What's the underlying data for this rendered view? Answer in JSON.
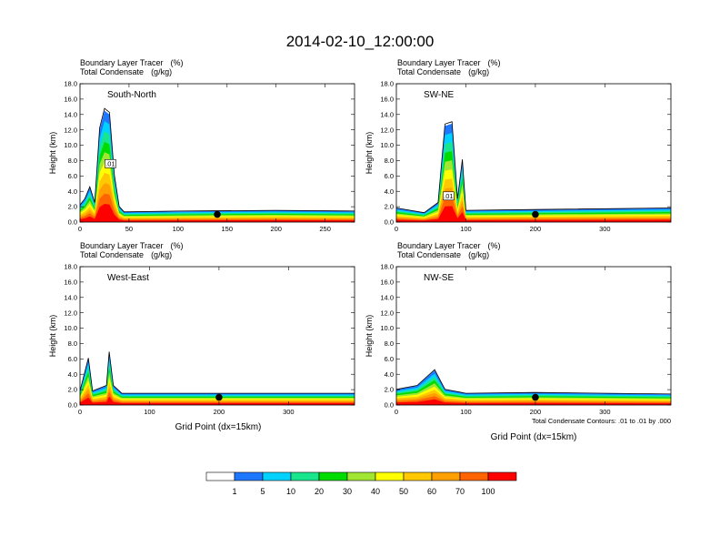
{
  "title": "2014-02-10_12:00:00",
  "panel_header": {
    "line1_name": "Boundary Layer Tracer",
    "line1_unit": "(%)",
    "line2_name": "Total Condensate",
    "line2_unit": "(g/kg)"
  },
  "xlabel": "Grid Point (dx=15km)",
  "ylabel": "Height (km)",
  "contour_note": "Total Condensate Contours: .01 to .01 by .000",
  "colorbar": {
    "colors": [
      "#ffffff",
      "#1e78ff",
      "#00d2ff",
      "#19e68c",
      "#00dc00",
      "#a0e632",
      "#ffff00",
      "#ffc800",
      "#ffa000",
      "#ff6400",
      "#ff0000"
    ],
    "labels": [
      "1",
      "5",
      "10",
      "20",
      "30",
      "40",
      "50",
      "60",
      "70",
      "100"
    ]
  },
  "chart_data": [
    {
      "type": "heatmap",
      "panel": "South-North",
      "xlim": [
        0,
        280
      ],
      "ylim": [
        0,
        18
      ],
      "xticks": [
        0,
        50,
        100,
        150,
        200,
        250
      ],
      "yticks": [
        "0.0",
        "2.0",
        "4.0",
        "6.0",
        "8.0",
        "10.0",
        "12.0",
        "14.0",
        "16.0",
        "18.0"
      ],
      "contour_labels": [
        {
          "text": ".01",
          "x": 31,
          "y": 7.6
        }
      ],
      "marker": {
        "x": 140,
        "y": 1.0
      },
      "profile": [
        [
          0,
          2.2
        ],
        [
          5,
          3
        ],
        [
          10,
          4.5
        ],
        [
          15,
          2.5
        ],
        [
          20,
          12
        ],
        [
          25,
          14.5
        ],
        [
          30,
          14
        ],
        [
          35,
          6
        ],
        [
          40,
          2
        ],
        [
          45,
          1.3
        ],
        [
          100,
          1.4
        ],
        [
          200,
          1.5
        ],
        [
          280,
          1.4
        ]
      ]
    },
    {
      "type": "heatmap",
      "panel": "SW-NE",
      "xlim": [
        0,
        395
      ],
      "ylim": [
        0,
        18
      ],
      "xticks": [
        0,
        100,
        200,
        300
      ],
      "yticks": [
        "0.0",
        "2.0",
        "4.0",
        "6.0",
        "8.0",
        "10.0",
        "12.0",
        "14.0",
        "16.0",
        "18.0"
      ],
      "contour_labels": [
        {
          "text": ".01",
          "x": 75,
          "y": 3.4
        }
      ],
      "marker": {
        "x": 200,
        "y": 1.0
      },
      "profile": [
        [
          0,
          1.8
        ],
        [
          40,
          1.2
        ],
        [
          60,
          2.5
        ],
        [
          70,
          12.5
        ],
        [
          80,
          12.8
        ],
        [
          88,
          3
        ],
        [
          95,
          8
        ],
        [
          100,
          1.5
        ],
        [
          200,
          1.6
        ],
        [
          395,
          1.8
        ]
      ]
    },
    {
      "type": "heatmap",
      "panel": "West-East",
      "xlim": [
        0,
        395
      ],
      "ylim": [
        0,
        18
      ],
      "xticks": [
        0,
        100,
        200,
        300
      ],
      "yticks": [
        "0.0",
        "2.0",
        "4.0",
        "6.0",
        "8.0",
        "10.0",
        "12.0",
        "14.0",
        "16.0",
        "18.0"
      ],
      "contour_labels": [],
      "marker": {
        "x": 200,
        "y": 1.0
      },
      "profile": [
        [
          0,
          1.8
        ],
        [
          12,
          6
        ],
        [
          18,
          1.8
        ],
        [
          38,
          2.5
        ],
        [
          42,
          6.8
        ],
        [
          48,
          2.5
        ],
        [
          60,
          1.5
        ],
        [
          200,
          1.5
        ],
        [
          395,
          1.5
        ]
      ]
    },
    {
      "type": "heatmap",
      "panel": "NW-SE",
      "xlim": [
        0,
        395
      ],
      "ylim": [
        0,
        18
      ],
      "xticks": [
        0,
        100,
        200,
        300
      ],
      "yticks": [
        "0.0",
        "2.0",
        "4.0",
        "6.0",
        "8.0",
        "10.0",
        "12.0",
        "14.0",
        "16.0",
        "18.0"
      ],
      "contour_labels": [],
      "marker": {
        "x": 200,
        "y": 1.0
      },
      "profile": [
        [
          0,
          2.0
        ],
        [
          30,
          2.5
        ],
        [
          55,
          4.5
        ],
        [
          70,
          2
        ],
        [
          100,
          1.5
        ],
        [
          200,
          1.6
        ],
        [
          395,
          1.4
        ]
      ]
    }
  ]
}
